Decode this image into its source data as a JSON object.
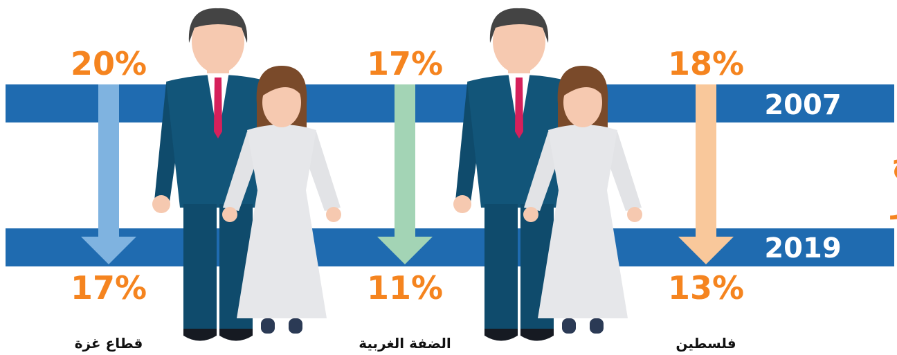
{
  "title": {
    "line1": "الزواج",
    "line2": "المبكر"
  },
  "years": [
    "2007",
    "2019"
  ],
  "regions": [
    {
      "name": "قطاع غزة",
      "start": "20%",
      "end": "17%"
    },
    {
      "name": "الضفة الغربية",
      "start": "17%",
      "end": "11%"
    },
    {
      "name": "فلسطين",
      "start": "18%",
      "end": "13%"
    }
  ]
}
